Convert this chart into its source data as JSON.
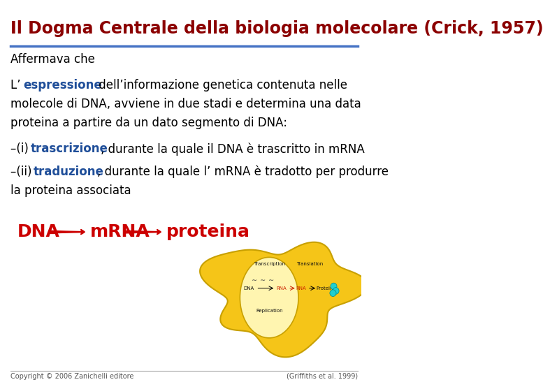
{
  "title": "Il Dogma Centrale della biologia molecolare (Crick, 1957)",
  "title_color": "#8B0000",
  "title_fontsize": 17,
  "bg_color": "#FFFFFF",
  "line_color": "#4472C4",
  "subtitle": "Affermava che",
  "para1_bold_color": "#1F4E99",
  "bullet1_bold_color": "#1F4E99",
  "bullet2_bold_color": "#1F4E99",
  "dna_label": "DNA",
  "mrna_label": "mRNA",
  "proteina_label": "proteina",
  "label_color": "#CC0000",
  "label_fontsize": 16,
  "arrow_color": "#CC0000",
  "footer_left": "Copyright © 2006 Zanichelli editore",
  "footer_right": "(Griffiths et al. 1999)",
  "footer_fontsize": 7,
  "body_fontsize": 12,
  "body_color": "#000000"
}
